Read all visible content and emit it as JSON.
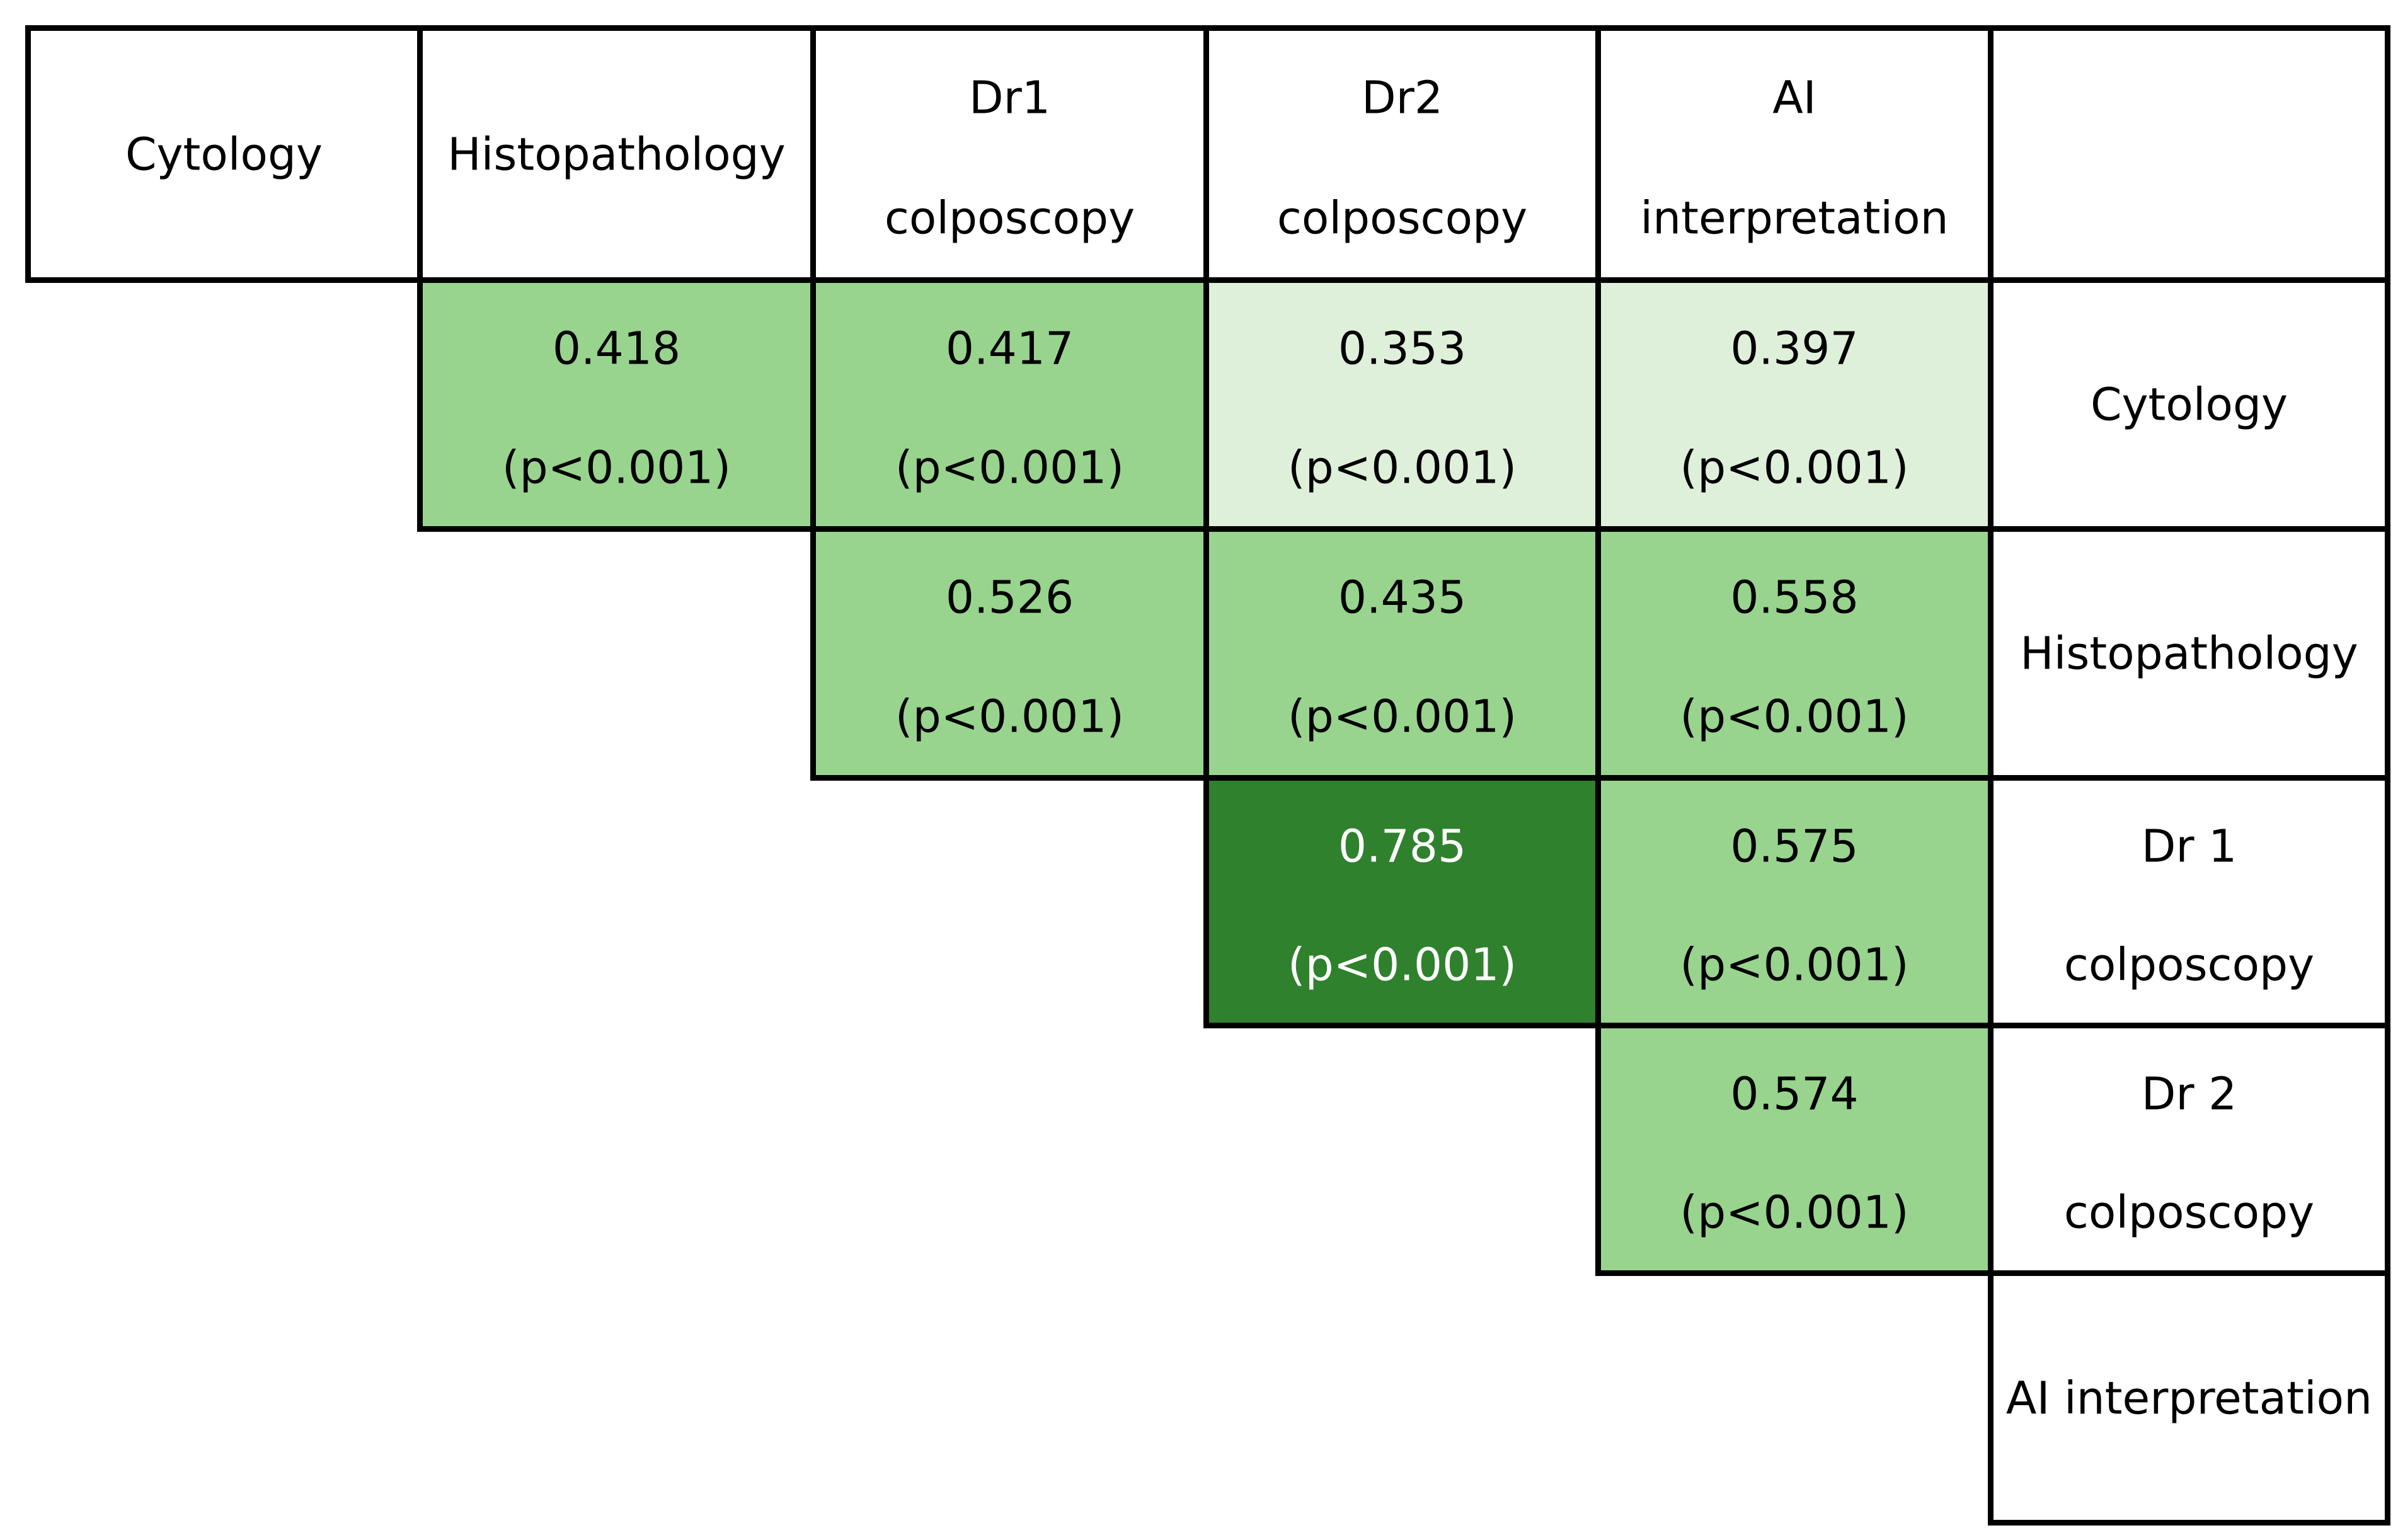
{
  "chart_data": {
    "type": "heatmap",
    "column_headers": [
      {
        "lines": [
          "Cytology"
        ]
      },
      {
        "lines": [
          "Histopathology"
        ]
      },
      {
        "lines": [
          "Dr1",
          "colposcopy"
        ]
      },
      {
        "lines": [
          "Dr2",
          "colposcopy"
        ]
      },
      {
        "lines": [
          "AI",
          "interpretation"
        ]
      },
      {
        "lines": []
      }
    ],
    "row_headers": [
      {
        "lines": [
          "Cytology"
        ]
      },
      {
        "lines": [
          "Histopathology"
        ]
      },
      {
        "lines": [
          "Dr 1",
          "colposcopy"
        ]
      },
      {
        "lines": [
          "Dr 2",
          "colposcopy"
        ]
      },
      {
        "lines": [
          "AI interpretation"
        ]
      }
    ],
    "cells": [
      {
        "row": 0,
        "col": 1,
        "value": 0.418,
        "value_label": "0.418",
        "p_label": "(p<0.001)",
        "color": "#98d48e"
      },
      {
        "row": 0,
        "col": 2,
        "value": 0.417,
        "value_label": "0.417",
        "p_label": "(p<0.001)",
        "color": "#98d48e"
      },
      {
        "row": 0,
        "col": 3,
        "value": 0.353,
        "value_label": "0.353",
        "p_label": "(p<0.001)",
        "color": "#dff0da"
      },
      {
        "row": 0,
        "col": 4,
        "value": 0.397,
        "value_label": "0.397",
        "p_label": "(p<0.001)",
        "color": "#dff0da"
      },
      {
        "row": 1,
        "col": 2,
        "value": 0.526,
        "value_label": "0.526",
        "p_label": "(p<0.001)",
        "color": "#98d48e"
      },
      {
        "row": 1,
        "col": 3,
        "value": 0.435,
        "value_label": "0.435",
        "p_label": "(p<0.001)",
        "color": "#98d48e"
      },
      {
        "row": 1,
        "col": 4,
        "value": 0.558,
        "value_label": "0.558",
        "p_label": "(p<0.001)",
        "color": "#98d48e"
      },
      {
        "row": 2,
        "col": 3,
        "value": 0.785,
        "value_label": "0.785",
        "p_label": "(p<0.001)",
        "color": "#2f812d"
      },
      {
        "row": 2,
        "col": 4,
        "value": 0.575,
        "value_label": "0.575",
        "p_label": "(p<0.001)",
        "color": "#98d48e"
      },
      {
        "row": 3,
        "col": 4,
        "value": 0.574,
        "value_label": "0.574",
        "p_label": "(p<0.001)",
        "color": "#98d48e"
      }
    ]
  }
}
